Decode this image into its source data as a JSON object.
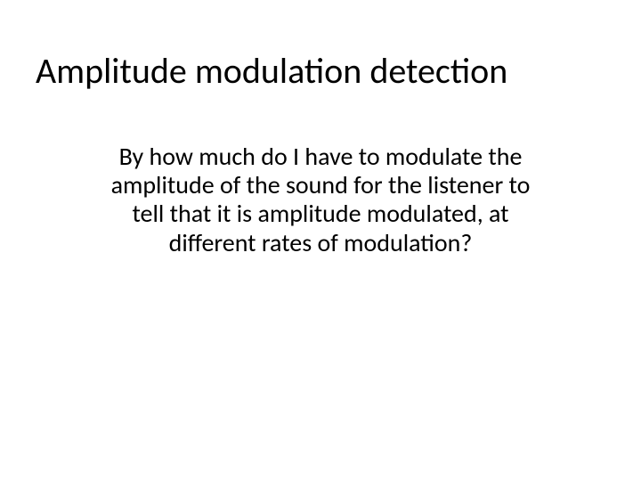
{
  "slide": {
    "title": "Amplitude modulation detection",
    "body": "By how much do I have to modulate the amplitude of the sound for the listener to tell that it is amplitude modulated, at different rates of modulation?",
    "background_color": "#ffffff",
    "title_color": "#000000",
    "body_color": "#000000",
    "title_fontsize": 40,
    "body_fontsize": 28,
    "font_family": "Calibri"
  }
}
